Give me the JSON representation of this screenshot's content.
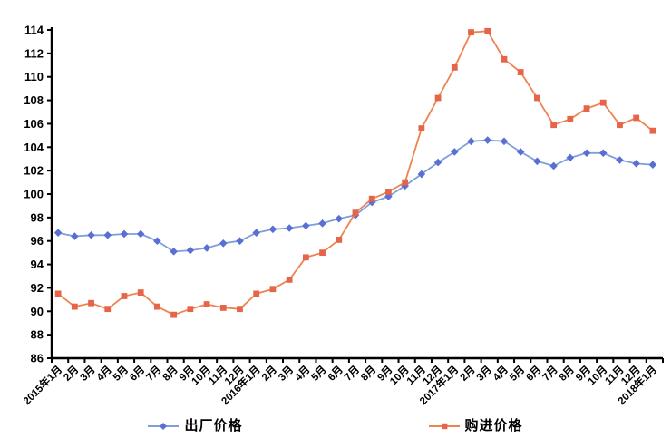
{
  "chart_data": {
    "type": "line",
    "title": "",
    "xlabel": "",
    "ylabel": "",
    "grid": false,
    "legend_position": "bottom",
    "ylim": [
      86,
      114
    ],
    "y_tick_step": 2,
    "y_ticks": [
      86,
      88,
      90,
      92,
      94,
      96,
      98,
      100,
      102,
      104,
      106,
      108,
      110,
      112,
      114
    ],
    "categories": [
      "2015年1月",
      "2月",
      "3月",
      "4月",
      "5月",
      "6月",
      "7月",
      "8月",
      "9月",
      "10月",
      "11月",
      "12月",
      "2016年1月",
      "2月",
      "3月",
      "4月",
      "5月",
      "6月",
      "7月",
      "8月",
      "9月",
      "10月",
      "11月",
      "12月",
      "2017年1月",
      "2月",
      "3月",
      "4月",
      "5月",
      "6月",
      "7月",
      "8月",
      "9月",
      "10月",
      "11月",
      "12月",
      "2018年1月"
    ],
    "series": [
      {
        "key": "factory-price",
        "name": "出厂价格",
        "marker": "diamond",
        "line_color": "#7f9fdb",
        "marker_color": "#5a6fd4",
        "values": [
          96.7,
          96.4,
          96.5,
          96.5,
          96.6,
          96.6,
          96.0,
          95.1,
          95.2,
          95.4,
          95.8,
          96.0,
          96.7,
          97.0,
          97.1,
          97.3,
          97.5,
          97.9,
          98.2,
          99.3,
          99.8,
          100.7,
          101.7,
          102.7,
          103.6,
          104.5,
          104.6,
          104.5,
          103.6,
          102.8,
          102.4,
          103.1,
          103.5,
          103.5,
          102.9,
          102.6,
          102.5
        ]
      },
      {
        "key": "purchase-price",
        "name": "购进价格",
        "marker": "square",
        "line_color": "#ee8350",
        "marker_color": "#e6644a",
        "values": [
          91.5,
          90.4,
          90.7,
          90.2,
          91.3,
          91.6,
          90.4,
          89.7,
          90.2,
          90.6,
          90.3,
          90.2,
          91.5,
          91.9,
          92.7,
          94.6,
          95.0,
          96.1,
          98.4,
          99.6,
          100.2,
          101.0,
          105.6,
          108.2,
          110.8,
          113.8,
          113.9,
          111.5,
          110.4,
          108.2,
          105.9,
          106.4,
          107.3,
          107.8,
          105.9,
          106.5,
          105.4
        ]
      }
    ],
    "axis_color": "#000000"
  }
}
